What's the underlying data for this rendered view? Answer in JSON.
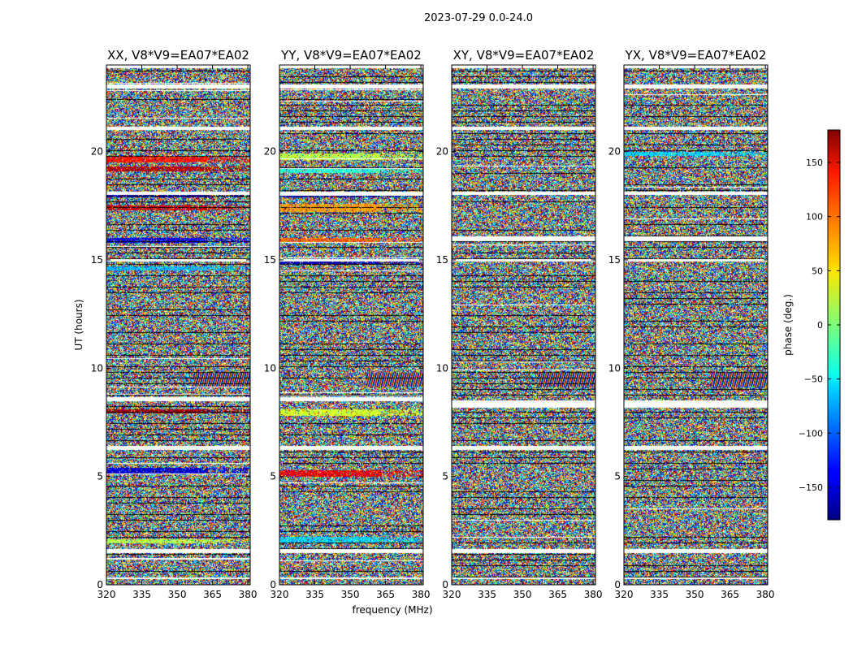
{
  "figure": {
    "suptitle": "2023-07-29 0.0-24.0"
  },
  "chart_data": {
    "type": "heatmap",
    "xlabel": "frequency (MHz)",
    "ylabel": "UT (hours)",
    "xlim": [
      320,
      381
    ],
    "ylim": [
      0,
      24
    ],
    "xticks": [
      320,
      335,
      350,
      365,
      380
    ],
    "yticks": [
      0,
      5,
      10,
      15,
      20
    ],
    "colorbar": {
      "label": "phase (deg.)",
      "range": [
        -180,
        180
      ],
      "ticks": [
        150,
        100,
        50,
        0,
        -50,
        -100,
        -150
      ],
      "tick_labels": [
        "150",
        "100",
        "50",
        "0",
        "−50",
        "−100",
        "−150"
      ],
      "colormap": "jet"
    },
    "panels": [
      {
        "title": "XX, V8*V9=EA07*EA02",
        "flagged_bands": [
          [
            0.3,
            0.35
          ],
          [
            1.5,
            1.65
          ],
          [
            6.25,
            6.4
          ],
          [
            8.5,
            8.65
          ],
          [
            14.95,
            15.05
          ],
          [
            18.05,
            18.15
          ],
          [
            21.05,
            21.15
          ],
          [
            22.95,
            23.1
          ],
          [
            23.9,
            24
          ]
        ],
        "coherent_bands": [
          {
            "y": [
              1.9,
              2.1
            ],
            "phase": 20
          },
          {
            "y": [
              5.1,
              5.4
            ],
            "phase": -150
          },
          {
            "y": [
              7.9,
              8.1
            ],
            "phase": 170
          },
          {
            "y": [
              15.8,
              16.0
            ],
            "phase": -140
          },
          {
            "y": [
              17.3,
              17.5
            ],
            "phase": 150
          },
          {
            "y": [
              17.9,
              18.0
            ],
            "phase": -160
          },
          {
            "y": [
              19.1,
              19.3
            ],
            "phase": 160
          },
          {
            "y": [
              19.5,
              19.8
            ],
            "phase": 130
          },
          {
            "y": [
              14.5,
              14.7
            ],
            "phase": -70
          }
        ]
      },
      {
        "title": "YY, V8*V9=EA07*EA02",
        "flagged_bands": [
          [
            0.3,
            0.35
          ],
          [
            1.5,
            1.65
          ],
          [
            6.25,
            6.4
          ],
          [
            8.5,
            8.65
          ],
          [
            14.95,
            15.05
          ],
          [
            18.05,
            18.15
          ],
          [
            21.05,
            21.15
          ],
          [
            22.95,
            23.1
          ],
          [
            23.9,
            24
          ]
        ],
        "coherent_bands": [
          {
            "y": [
              1.9,
              2.2
            ],
            "phase": -60
          },
          {
            "y": [
              5.0,
              5.3
            ],
            "phase": 140
          },
          {
            "y": [
              7.8,
              8.1
            ],
            "phase": 30
          },
          {
            "y": [
              14.8,
              15.0
            ],
            "phase": -160
          },
          {
            "y": [
              15.8,
              16.0
            ],
            "phase": 100
          },
          {
            "y": [
              17.2,
              17.6
            ],
            "phase": 80
          },
          {
            "y": [
              17.9,
              18.0
            ],
            "phase": -170
          },
          {
            "y": [
              19.0,
              19.2
            ],
            "phase": -30
          },
          {
            "y": [
              19.6,
              19.9
            ],
            "phase": 20
          }
        ]
      },
      {
        "title": "XY, V8*V9=EA07*EA02",
        "flagged_bands": [
          [
            0.3,
            0.35
          ],
          [
            1.5,
            1.65
          ],
          [
            6.25,
            6.4
          ],
          [
            8.2,
            8.5
          ],
          [
            14.95,
            15.05
          ],
          [
            15.9,
            16.1
          ],
          [
            18.05,
            18.15
          ],
          [
            21.05,
            21.15
          ],
          [
            22.95,
            23.1
          ],
          [
            23.9,
            24
          ]
        ],
        "coherent_bands": []
      },
      {
        "title": "YX, V8*V9=EA07*EA02",
        "flagged_bands": [
          [
            0.3,
            0.35
          ],
          [
            1.5,
            1.65
          ],
          [
            6.25,
            6.4
          ],
          [
            8.2,
            8.5
          ],
          [
            14.95,
            15.05
          ],
          [
            15.9,
            16.1
          ],
          [
            18.05,
            18.15
          ],
          [
            21.05,
            21.15
          ],
          [
            22.95,
            23.1
          ],
          [
            23.9,
            24
          ]
        ],
        "coherent_bands": [
          {
            "y": [
              19.8,
              20.0
            ],
            "phase": -60
          }
        ]
      }
    ]
  }
}
